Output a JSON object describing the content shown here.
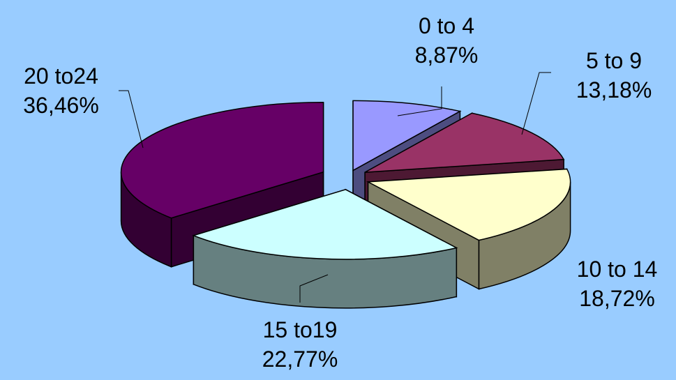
{
  "colors": {
    "background": "#99CCFF"
  },
  "chart_data": {
    "type": "pie",
    "three_d": true,
    "exploded": true,
    "legend": "none",
    "slices": [
      {
        "category": "0 to 4",
        "label": "8,87%",
        "value": 8.87,
        "color": "#9999FF",
        "side_color": "#4D4D80"
      },
      {
        "category": "5 to 9",
        "label": "13,18%",
        "value": 13.18,
        "color": "#993366",
        "side_color": "#4D1933"
      },
      {
        "category": "10 to 14",
        "label": "18,72%",
        "value": 18.72,
        "color": "#FFFFCC",
        "side_color": "#808066"
      },
      {
        "category": "15 to19",
        "label": "22,77%",
        "value": 22.77,
        "color": "#CCFFFF",
        "side_color": "#668080"
      },
      {
        "category": "20 to24",
        "label": "36,46%",
        "value": 36.46,
        "color": "#660066",
        "side_color": "#330033"
      }
    ]
  }
}
